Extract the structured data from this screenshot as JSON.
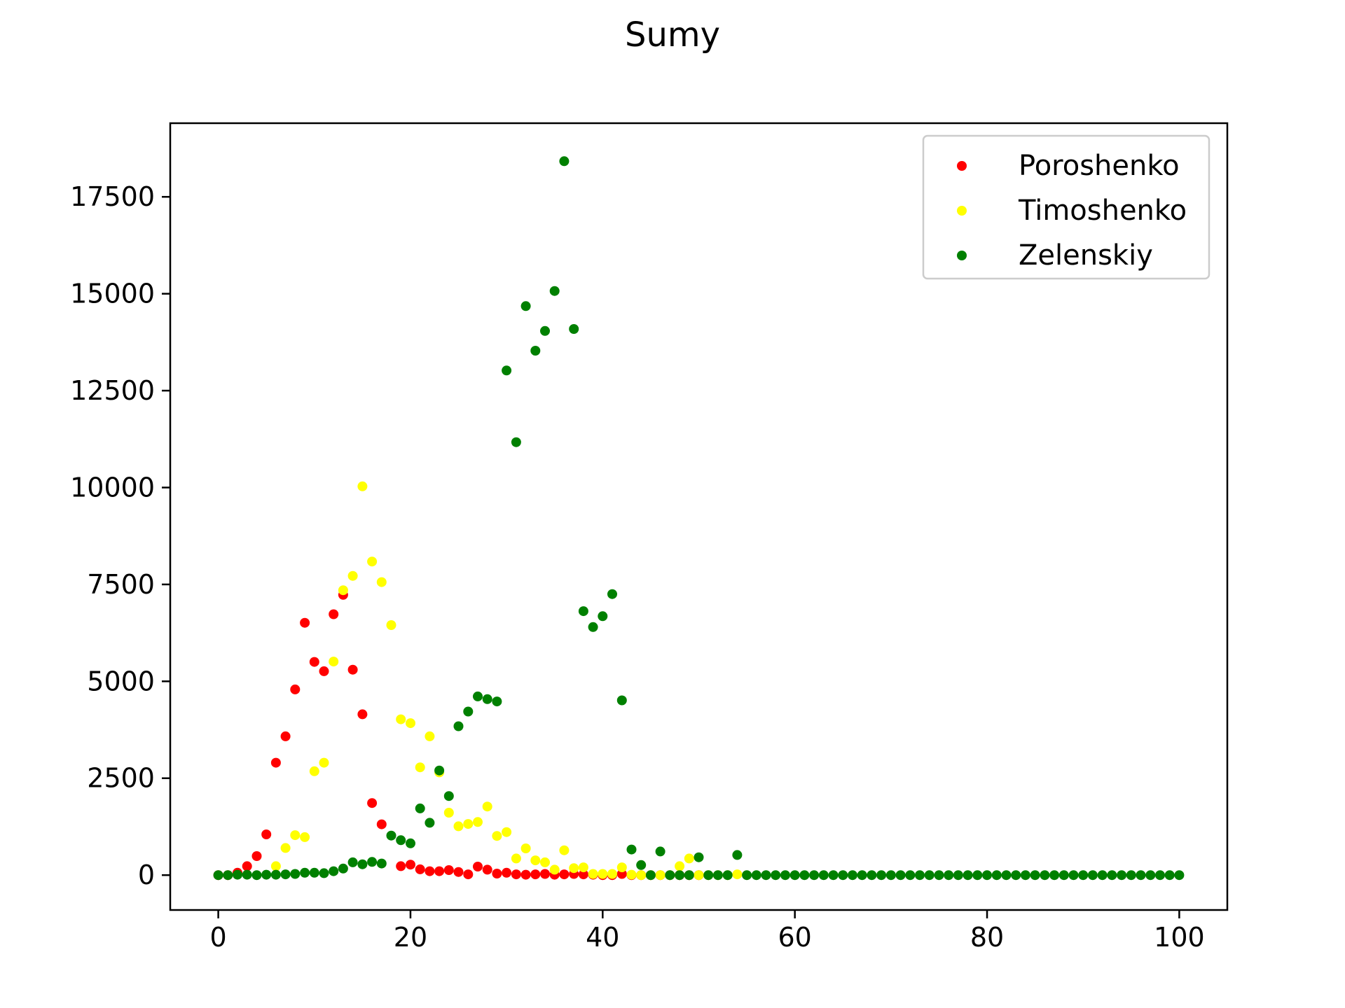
{
  "chart_data": {
    "type": "scatter",
    "title": "Sumy",
    "xlabel": "",
    "ylabel": "",
    "xlim": [
      -5,
      105
    ],
    "ylim": [
      -900,
      19400
    ],
    "xticks": [
      0,
      20,
      40,
      60,
      80,
      100
    ],
    "yticks": [
      0,
      2500,
      5000,
      7500,
      10000,
      12500,
      15000,
      17500
    ],
    "grid": false,
    "legend_position": "upper right",
    "series": [
      {
        "name": "Poroshenko",
        "color": "#ff0000",
        "points": [
          [
            0,
            0
          ],
          [
            1,
            0
          ],
          [
            2,
            60
          ],
          [
            3,
            230
          ],
          [
            4,
            490
          ],
          [
            5,
            1050
          ],
          [
            6,
            2900
          ],
          [
            7,
            3580
          ],
          [
            8,
            4790
          ],
          [
            9,
            6510
          ],
          [
            10,
            5500
          ],
          [
            11,
            5260
          ],
          [
            12,
            6730
          ],
          [
            13,
            7230
          ],
          [
            14,
            5300
          ],
          [
            15,
            4150
          ],
          [
            16,
            1860
          ],
          [
            17,
            1310
          ],
          [
            19,
            230
          ],
          [
            20,
            270
          ],
          [
            21,
            150
          ],
          [
            22,
            100
          ],
          [
            23,
            100
          ],
          [
            24,
            130
          ],
          [
            25,
            80
          ],
          [
            26,
            20
          ],
          [
            27,
            220
          ],
          [
            28,
            140
          ],
          [
            29,
            40
          ],
          [
            30,
            60
          ],
          [
            31,
            20
          ],
          [
            32,
            10
          ],
          [
            33,
            20
          ],
          [
            34,
            30
          ],
          [
            35,
            10
          ],
          [
            36,
            20
          ],
          [
            37,
            30
          ],
          [
            38,
            20
          ],
          [
            39,
            10
          ],
          [
            40,
            0
          ],
          [
            41,
            0
          ],
          [
            42,
            30
          ],
          [
            43,
            0
          ],
          [
            44,
            0
          ],
          [
            45,
            0
          ],
          [
            46,
            0
          ],
          [
            47,
            0
          ],
          [
            48,
            0
          ],
          [
            49,
            0
          ],
          [
            50,
            0
          ]
        ]
      },
      {
        "name": "Timoshenko",
        "color": "#ffff00",
        "points": [
          [
            6,
            230
          ],
          [
            7,
            700
          ],
          [
            8,
            1030
          ],
          [
            9,
            980
          ],
          [
            10,
            2680
          ],
          [
            11,
            2900
          ],
          [
            12,
            5510
          ],
          [
            13,
            7350
          ],
          [
            14,
            7720
          ],
          [
            15,
            10030
          ],
          [
            16,
            8090
          ],
          [
            17,
            7560
          ],
          [
            18,
            6450
          ],
          [
            19,
            4020
          ],
          [
            20,
            3920
          ],
          [
            21,
            2780
          ],
          [
            22,
            3580
          ],
          [
            23,
            2650
          ],
          [
            24,
            1610
          ],
          [
            25,
            1260
          ],
          [
            26,
            1320
          ],
          [
            27,
            1370
          ],
          [
            28,
            1770
          ],
          [
            29,
            1010
          ],
          [
            30,
            1110
          ],
          [
            31,
            430
          ],
          [
            32,
            690
          ],
          [
            33,
            380
          ],
          [
            34,
            330
          ],
          [
            35,
            140
          ],
          [
            36,
            640
          ],
          [
            37,
            180
          ],
          [
            38,
            200
          ],
          [
            39,
            30
          ],
          [
            40,
            30
          ],
          [
            41,
            30
          ],
          [
            42,
            200
          ],
          [
            43,
            10
          ],
          [
            44,
            0
          ],
          [
            45,
            0
          ],
          [
            46,
            0
          ],
          [
            47,
            0
          ],
          [
            48,
            230
          ],
          [
            49,
            430
          ],
          [
            50,
            0
          ],
          [
            51,
            0
          ],
          [
            52,
            0
          ],
          [
            53,
            0
          ],
          [
            54,
            20
          ]
        ]
      },
      {
        "name": "Zelenskiy",
        "color": "#008000",
        "points": [
          [
            0,
            0
          ],
          [
            1,
            0
          ],
          [
            2,
            10
          ],
          [
            3,
            10
          ],
          [
            4,
            0
          ],
          [
            5,
            10
          ],
          [
            6,
            10
          ],
          [
            7,
            20
          ],
          [
            8,
            30
          ],
          [
            9,
            60
          ],
          [
            10,
            60
          ],
          [
            11,
            50
          ],
          [
            12,
            100
          ],
          [
            13,
            170
          ],
          [
            14,
            330
          ],
          [
            15,
            280
          ],
          [
            16,
            340
          ],
          [
            17,
            300
          ],
          [
            18,
            1020
          ],
          [
            19,
            900
          ],
          [
            20,
            820
          ],
          [
            21,
            1720
          ],
          [
            22,
            1350
          ],
          [
            23,
            2700
          ],
          [
            24,
            2040
          ],
          [
            25,
            3840
          ],
          [
            26,
            4220
          ],
          [
            27,
            4610
          ],
          [
            28,
            4540
          ],
          [
            29,
            4480
          ],
          [
            30,
            13020
          ],
          [
            31,
            11170
          ],
          [
            32,
            14680
          ],
          [
            33,
            13530
          ],
          [
            34,
            14040
          ],
          [
            35,
            15070
          ],
          [
            36,
            18420
          ],
          [
            37,
            14090
          ],
          [
            38,
            6810
          ],
          [
            39,
            6400
          ],
          [
            40,
            6680
          ],
          [
            41,
            7250
          ],
          [
            42,
            4510
          ],
          [
            43,
            660
          ],
          [
            44,
            260
          ],
          [
            45,
            0
          ],
          [
            46,
            610
          ],
          [
            47,
            0
          ],
          [
            48,
            0
          ],
          [
            49,
            0
          ],
          [
            50,
            460
          ],
          [
            51,
            0
          ],
          [
            52,
            0
          ],
          [
            53,
            0
          ],
          [
            54,
            520
          ],
          [
            55,
            0
          ],
          [
            56,
            0
          ],
          [
            57,
            0
          ],
          [
            58,
            0
          ],
          [
            59,
            0
          ],
          [
            60,
            0
          ],
          [
            61,
            0
          ],
          [
            62,
            0
          ],
          [
            63,
            0
          ],
          [
            64,
            0
          ],
          [
            65,
            0
          ],
          [
            66,
            0
          ],
          [
            67,
            0
          ],
          [
            68,
            0
          ],
          [
            69,
            0
          ],
          [
            70,
            0
          ],
          [
            71,
            0
          ],
          [
            72,
            0
          ],
          [
            73,
            0
          ],
          [
            74,
            0
          ],
          [
            75,
            0
          ],
          [
            76,
            0
          ],
          [
            77,
            0
          ],
          [
            78,
            0
          ],
          [
            79,
            0
          ],
          [
            80,
            0
          ],
          [
            81,
            0
          ],
          [
            82,
            0
          ],
          [
            83,
            0
          ],
          [
            84,
            0
          ],
          [
            85,
            0
          ],
          [
            86,
            0
          ],
          [
            87,
            0
          ],
          [
            88,
            0
          ],
          [
            89,
            0
          ],
          [
            90,
            0
          ],
          [
            91,
            0
          ],
          [
            92,
            0
          ],
          [
            93,
            0
          ],
          [
            94,
            0
          ],
          [
            95,
            0
          ],
          [
            96,
            0
          ],
          [
            97,
            0
          ],
          [
            98,
            0
          ],
          [
            99,
            0
          ],
          [
            100,
            0
          ]
        ]
      }
    ]
  }
}
